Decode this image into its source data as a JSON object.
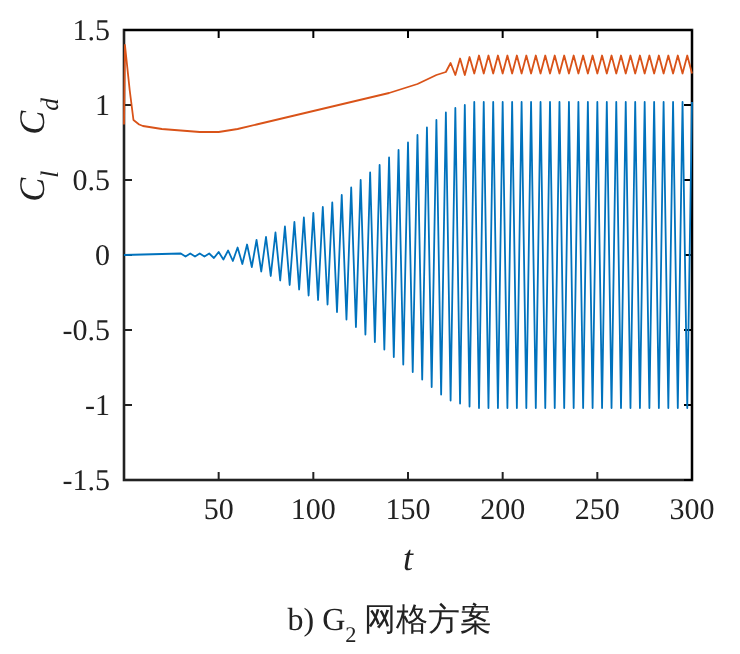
{
  "chart_data": {
    "type": "line",
    "title": "b) G$_{2}$ 网格方案",
    "xlabel": "t",
    "ylabel": "C$_{l}$    C$_{d}$",
    "xlim": [
      0,
      300
    ],
    "xticks": [
      50,
      100,
      150,
      200,
      250,
      300
    ],
    "ylim": [
      -1.5,
      1.5
    ],
    "yticks": [
      -1.5,
      -1,
      -0.5,
      0,
      0.5,
      1,
      1.5
    ],
    "grid": false,
    "marker": "none",
    "line_style": "solid",
    "series": [
      {
        "color": "#0072bd",
        "x": [
          0,
          30,
          32.5,
          35,
          37.5,
          40,
          42.5,
          45,
          47.5,
          50,
          52.5,
          55,
          57.5,
          60,
          62.5,
          65,
          67.5,
          70,
          72.5,
          75,
          77.5,
          80,
          82.5,
          85,
          87.5,
          90,
          92.5,
          95,
          97.5,
          100,
          102.5,
          105,
          107.5,
          110,
          112.5,
          115,
          117.5,
          120,
          122.5,
          125,
          127.5,
          130,
          132.5,
          135,
          137.5,
          140,
          142.5,
          145,
          147.5,
          150,
          152.5,
          155,
          157.5,
          160,
          162.5,
          165,
          167.5,
          170,
          172.5,
          175,
          177.5,
          180,
          182.5,
          185,
          187.5,
          190,
          192.5,
          195,
          197.5,
          200,
          202.5,
          205,
          207.5,
          210,
          212.5,
          215,
          217.5,
          220,
          222.5,
          225,
          227.5,
          230,
          232.5,
          235,
          237.5,
          240,
          242.5,
          245,
          247.5,
          250,
          252.5,
          255,
          257.5,
          260,
          262.5,
          265,
          267.5,
          270,
          272.5,
          275,
          277.5,
          280,
          282.5,
          285,
          287.5,
          290,
          292.5,
          295,
          297.5,
          300
        ],
        "values": [
          0,
          0.01,
          -0.01,
          0.01,
          -0.01,
          0.01,
          -0.01,
          0.01,
          -0.02,
          0.02,
          -0.03,
          0.03,
          -0.04,
          0.05,
          -0.06,
          0.07,
          -0.08,
          0.1,
          -0.11,
          0.12,
          -0.14,
          0.15,
          -0.17,
          0.19,
          -0.2,
          0.22,
          -0.23,
          0.25,
          -0.27,
          0.28,
          -0.3,
          0.32,
          -0.33,
          0.35,
          -0.38,
          0.4,
          -0.43,
          0.45,
          -0.48,
          0.5,
          -0.53,
          0.55,
          -0.58,
          0.6,
          -0.63,
          0.65,
          -0.68,
          0.7,
          -0.73,
          0.75,
          -0.78,
          0.8,
          -0.83,
          0.85,
          -0.88,
          0.9,
          -0.93,
          0.95,
          -0.97,
          0.98,
          -0.99,
          1,
          -1.01,
          1.02,
          -1.02,
          1.02,
          -1.02,
          1.02,
          -1.02,
          1.02,
          -1.02,
          1.02,
          -1.02,
          1.02,
          -1.02,
          1.02,
          -1.02,
          1.02,
          -1.02,
          1.02,
          -1.02,
          1.02,
          -1.02,
          1.02,
          -1.02,
          1.02,
          -1.02,
          1.02,
          -1.02,
          1.02,
          -1.02,
          1.02,
          -1.02,
          1.02,
          -1.02,
          1.02,
          -1.02,
          1.02,
          -1.02,
          1.02,
          -1.02,
          1.02,
          -1.02,
          1.02,
          -1.02,
          1.02,
          -1.02,
          1.02,
          -1.02,
          1.02
        ]
      },
      {
        "color": "#d95319",
        "x": [
          0,
          0.5,
          3,
          5,
          8,
          10,
          20,
          30,
          40,
          50,
          60,
          70,
          80,
          90,
          100,
          110,
          120,
          130,
          140,
          150,
          155,
          160,
          165,
          170,
          172.5,
          175,
          177.5,
          180,
          182.5,
          185,
          187.5,
          190,
          192.5,
          195,
          197.5,
          200,
          202.5,
          205,
          207.5,
          210,
          212.5,
          215,
          217.5,
          220,
          222.5,
          225,
          227.5,
          230,
          232.5,
          235,
          237.5,
          240,
          242.5,
          245,
          247.5,
          250,
          252.5,
          255,
          257.5,
          260,
          262.5,
          265,
          267.5,
          270,
          272.5,
          275,
          277.5,
          280,
          282.5,
          285,
          287.5,
          290,
          292.5,
          295,
          297.5,
          300
        ],
        "values": [
          0.87,
          1.4,
          1.1,
          0.9,
          0.87,
          0.86,
          0.84,
          0.83,
          0.82,
          0.82,
          0.84,
          0.87,
          0.9,
          0.93,
          0.96,
          0.99,
          1.02,
          1.05,
          1.08,
          1.12,
          1.14,
          1.17,
          1.2,
          1.22,
          1.28,
          1.2,
          1.31,
          1.2,
          1.32,
          1.21,
          1.33,
          1.21,
          1.33,
          1.21,
          1.33,
          1.21,
          1.33,
          1.21,
          1.33,
          1.21,
          1.33,
          1.21,
          1.33,
          1.21,
          1.33,
          1.21,
          1.33,
          1.21,
          1.33,
          1.21,
          1.33,
          1.21,
          1.33,
          1.21,
          1.33,
          1.21,
          1.33,
          1.21,
          1.33,
          1.21,
          1.33,
          1.21,
          1.33,
          1.21,
          1.33,
          1.21,
          1.33,
          1.21,
          1.33,
          1.21,
          1.33,
          1.21,
          1.33,
          1.21,
          1.33,
          1.21
        ]
      }
    ]
  }
}
